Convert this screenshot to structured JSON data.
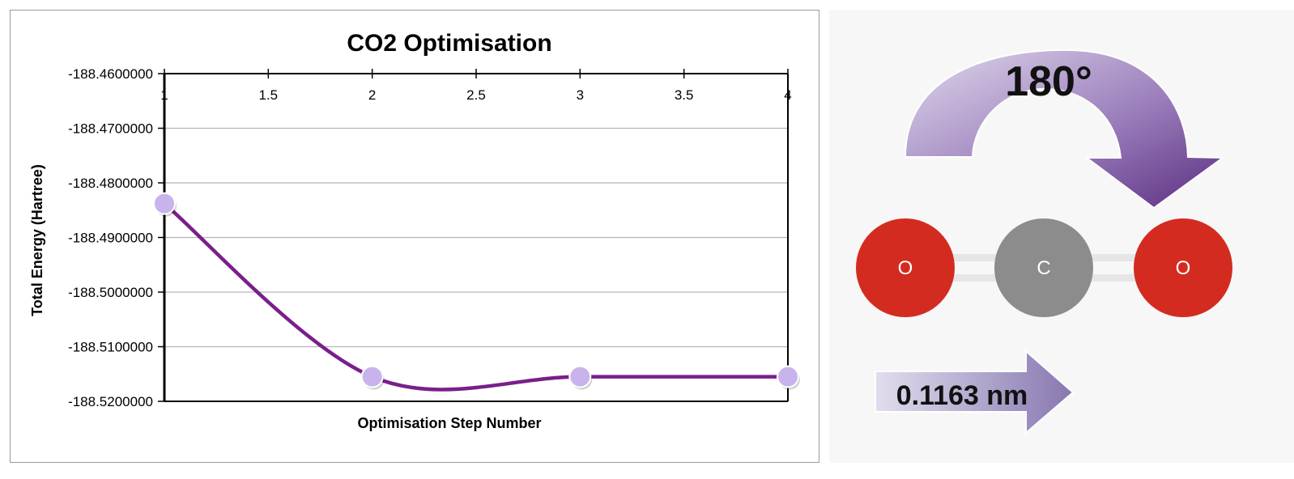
{
  "chart_data": {
    "type": "line",
    "title": "CO2 Optimisation",
    "xlabel": "Optimisation Step Number",
    "ylabel": "Total Energy (Hartree)",
    "xlim": [
      1,
      4
    ],
    "ylim": [
      -188.52,
      -188.46
    ],
    "x_ticks": [
      "1",
      "1.5",
      "2",
      "2.5",
      "3",
      "3.5",
      "4"
    ],
    "y_ticks": [
      "-188.4600000",
      "-188.4700000",
      "-188.4800000",
      "-188.4900000",
      "-188.5000000",
      "-188.5100000",
      "-188.5200000"
    ],
    "x_tick_values": [
      1,
      1.5,
      2,
      2.5,
      3,
      3.5,
      4
    ],
    "y_tick_values": [
      -188.46,
      -188.47,
      -188.48,
      -188.49,
      -188.5,
      -188.51,
      -188.52
    ],
    "series": [
      {
        "x": [
          1,
          2,
          3,
          4
        ],
        "y": [
          -188.4838,
          -188.5155,
          -188.5155,
          -188.5155
        ]
      }
    ],
    "smoothed": true,
    "x_axis_position": "top",
    "grid": true,
    "legend": "none",
    "line_color": "#7a1f8a",
    "marker_color": "#c9b3ec"
  },
  "diagram": {
    "angle_label": "180°",
    "bond_length_label": "0.1163 nm",
    "atoms": [
      {
        "symbol": "O",
        "color": "#d42b20"
      },
      {
        "symbol": "C",
        "color": "#8c8c8c"
      },
      {
        "symbol": "O",
        "color": "#d42b20"
      }
    ],
    "arrow_colors": [
      "#d9d2e6",
      "#5b2d80"
    ]
  }
}
